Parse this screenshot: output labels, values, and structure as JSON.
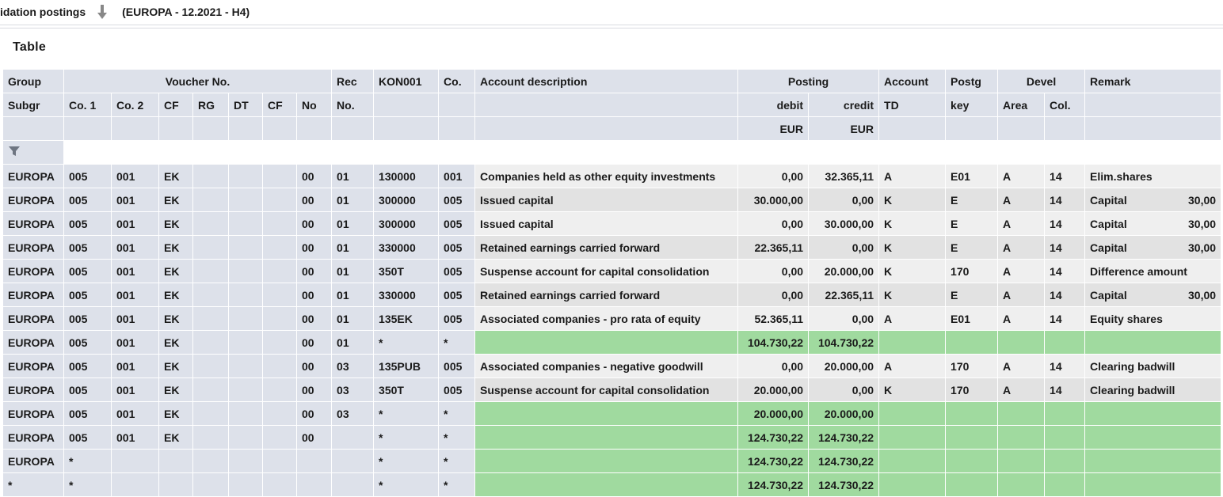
{
  "header": {
    "title": "idation postings",
    "context": "(EUROPA - 12.2021 - H4)"
  },
  "section": {
    "title": "Table"
  },
  "colors": {
    "header_bg": "#dde1ea",
    "row_alt": "#e2e2e2",
    "row": "#efefef",
    "total_row": "#a0da9f"
  },
  "columns": {
    "group_top": "Group",
    "group": "Subgr",
    "voucher": "Voucher No.",
    "co1": "Co. 1",
    "co2": "Co. 2",
    "cf": "CF",
    "rg": "RG",
    "dt": "DT",
    "cf2": "CF",
    "no": "No",
    "rec_top": "Rec",
    "rec": "No.",
    "kon": "KON001",
    "co": "Co.",
    "desc": "Account description",
    "posting": "Posting",
    "debit": "debit",
    "credit": "credit",
    "debit_cur": "EUR",
    "credit_cur": "EUR",
    "account_top": "Account",
    "account": "TD",
    "postg_top": "Postg",
    "postg": "key",
    "devel": "Devel",
    "area": "Area",
    "col": "Col.",
    "remark": "Remark"
  },
  "rows": [
    {
      "style": "r-a",
      "group": "EUROPA",
      "co1": "005",
      "co2": "001",
      "cf": "EK",
      "rg": "",
      "dt": "",
      "cf2": "",
      "no": "00",
      "rec": "01",
      "kon": "130000",
      "co": "001",
      "desc": "Companies held as other equity investments",
      "debit": "0,00",
      "credit": "32.365,11",
      "td": "A",
      "key": "E01",
      "area": "A",
      "col": "14",
      "remark": "Elim.shares",
      "remark_val": ""
    },
    {
      "style": "r-b",
      "group": "EUROPA",
      "co1": "005",
      "co2": "001",
      "cf": "EK",
      "rg": "",
      "dt": "",
      "cf2": "",
      "no": "00",
      "rec": "01",
      "kon": "300000",
      "co": "005",
      "desc": "Issued capital",
      "debit": "30.000,00",
      "credit": "0,00",
      "td": "K",
      "key": "E",
      "area": "A",
      "col": "14",
      "remark": "Capital",
      "remark_val": "30,00"
    },
    {
      "style": "r-a",
      "group": "EUROPA",
      "co1": "005",
      "co2": "001",
      "cf": "EK",
      "rg": "",
      "dt": "",
      "cf2": "",
      "no": "00",
      "rec": "01",
      "kon": "300000",
      "co": "005",
      "desc": "Issued capital",
      "debit": "0,00",
      "credit": "30.000,00",
      "td": "K",
      "key": "E",
      "area": "A",
      "col": "14",
      "remark": "Capital",
      "remark_val": "30,00"
    },
    {
      "style": "r-b",
      "group": "EUROPA",
      "co1": "005",
      "co2": "001",
      "cf": "EK",
      "rg": "",
      "dt": "",
      "cf2": "",
      "no": "00",
      "rec": "01",
      "kon": "330000",
      "co": "005",
      "desc": "Retained earnings carried forward",
      "debit": "22.365,11",
      "credit": "0,00",
      "td": "K",
      "key": "E",
      "area": "A",
      "col": "14",
      "remark": "Capital",
      "remark_val": "30,00"
    },
    {
      "style": "r-a",
      "group": "EUROPA",
      "co1": "005",
      "co2": "001",
      "cf": "EK",
      "rg": "",
      "dt": "",
      "cf2": "",
      "no": "00",
      "rec": "01",
      "kon": "350T",
      "co": "005",
      "desc": "Suspense account for capital consolidation",
      "debit": "0,00",
      "credit": "20.000,00",
      "td": "K",
      "key": "170",
      "area": "A",
      "col": "14",
      "remark": "Difference amount",
      "remark_val": ""
    },
    {
      "style": "r-b",
      "group": "EUROPA",
      "co1": "005",
      "co2": "001",
      "cf": "EK",
      "rg": "",
      "dt": "",
      "cf2": "",
      "no": "00",
      "rec": "01",
      "kon": "330000",
      "co": "005",
      "desc": "Retained earnings carried forward",
      "debit": "0,00",
      "credit": "22.365,11",
      "td": "K",
      "key": "E",
      "area": "A",
      "col": "14",
      "remark": "Capital",
      "remark_val": "30,00"
    },
    {
      "style": "r-a",
      "group": "EUROPA",
      "co1": "005",
      "co2": "001",
      "cf": "EK",
      "rg": "",
      "dt": "",
      "cf2": "",
      "no": "00",
      "rec": "01",
      "kon": "135EK",
      "co": "005",
      "desc": "Associated companies - pro rata of equity",
      "debit": "52.365,11",
      "credit": "0,00",
      "td": "A",
      "key": "E01",
      "area": "A",
      "col": "14",
      "remark": "Equity shares",
      "remark_val": ""
    },
    {
      "style": "r-g",
      "group": "EUROPA",
      "co1": "005",
      "co2": "001",
      "cf": "EK",
      "rg": "",
      "dt": "",
      "cf2": "",
      "no": "00",
      "rec": "01",
      "kon": "*",
      "co": "*",
      "desc": "",
      "debit": "104.730,22",
      "credit": "104.730,22",
      "td": "",
      "key": "",
      "area": "",
      "col": "",
      "remark": "",
      "remark_val": ""
    },
    {
      "style": "r-a",
      "group": "EUROPA",
      "co1": "005",
      "co2": "001",
      "cf": "EK",
      "rg": "",
      "dt": "",
      "cf2": "",
      "no": "00",
      "rec": "03",
      "kon": "135PUB",
      "co": "005",
      "desc": "Associated companies - negative goodwill",
      "debit": "0,00",
      "credit": "20.000,00",
      "td": "A",
      "key": "170",
      "area": "A",
      "col": "14",
      "remark": "Clearing badwill",
      "remark_val": ""
    },
    {
      "style": "r-b",
      "group": "EUROPA",
      "co1": "005",
      "co2": "001",
      "cf": "EK",
      "rg": "",
      "dt": "",
      "cf2": "",
      "no": "00",
      "rec": "03",
      "kon": "350T",
      "co": "005",
      "desc": "Suspense account for capital consolidation",
      "debit": "20.000,00",
      "credit": "0,00",
      "td": "K",
      "key": "170",
      "area": "A",
      "col": "14",
      "remark": "Clearing badwill",
      "remark_val": ""
    },
    {
      "style": "r-g",
      "group": "EUROPA",
      "co1": "005",
      "co2": "001",
      "cf": "EK",
      "rg": "",
      "dt": "",
      "cf2": "",
      "no": "00",
      "rec": "03",
      "kon": "*",
      "co": "*",
      "desc": "",
      "debit": "20.000,00",
      "credit": "20.000,00",
      "td": "",
      "key": "",
      "area": "",
      "col": "",
      "remark": "",
      "remark_val": ""
    },
    {
      "style": "r-g",
      "group": "EUROPA",
      "co1": "005",
      "co2": "001",
      "cf": "EK",
      "rg": "",
      "dt": "",
      "cf2": "",
      "no": "00",
      "rec": "",
      "kon": "*",
      "co": "*",
      "desc": "",
      "debit": "124.730,22",
      "credit": "124.730,22",
      "td": "",
      "key": "",
      "area": "",
      "col": "",
      "remark": "",
      "remark_val": ""
    },
    {
      "style": "r-g",
      "group": "EUROPA",
      "co1": "*",
      "co2": "",
      "cf": "",
      "rg": "",
      "dt": "",
      "cf2": "",
      "no": "",
      "rec": "",
      "kon": "*",
      "co": "*",
      "desc": "",
      "debit": "124.730,22",
      "credit": "124.730,22",
      "td": "",
      "key": "",
      "area": "",
      "col": "",
      "remark": "",
      "remark_val": ""
    },
    {
      "style": "r-g",
      "group": "*",
      "co1": "*",
      "co2": "",
      "cf": "",
      "rg": "",
      "dt": "",
      "cf2": "",
      "no": "",
      "rec": "",
      "kon": "*",
      "co": "*",
      "desc": "",
      "debit": "124.730,22",
      "credit": "124.730,22",
      "td": "",
      "key": "",
      "area": "",
      "col": "",
      "remark": "",
      "remark_val": ""
    }
  ]
}
